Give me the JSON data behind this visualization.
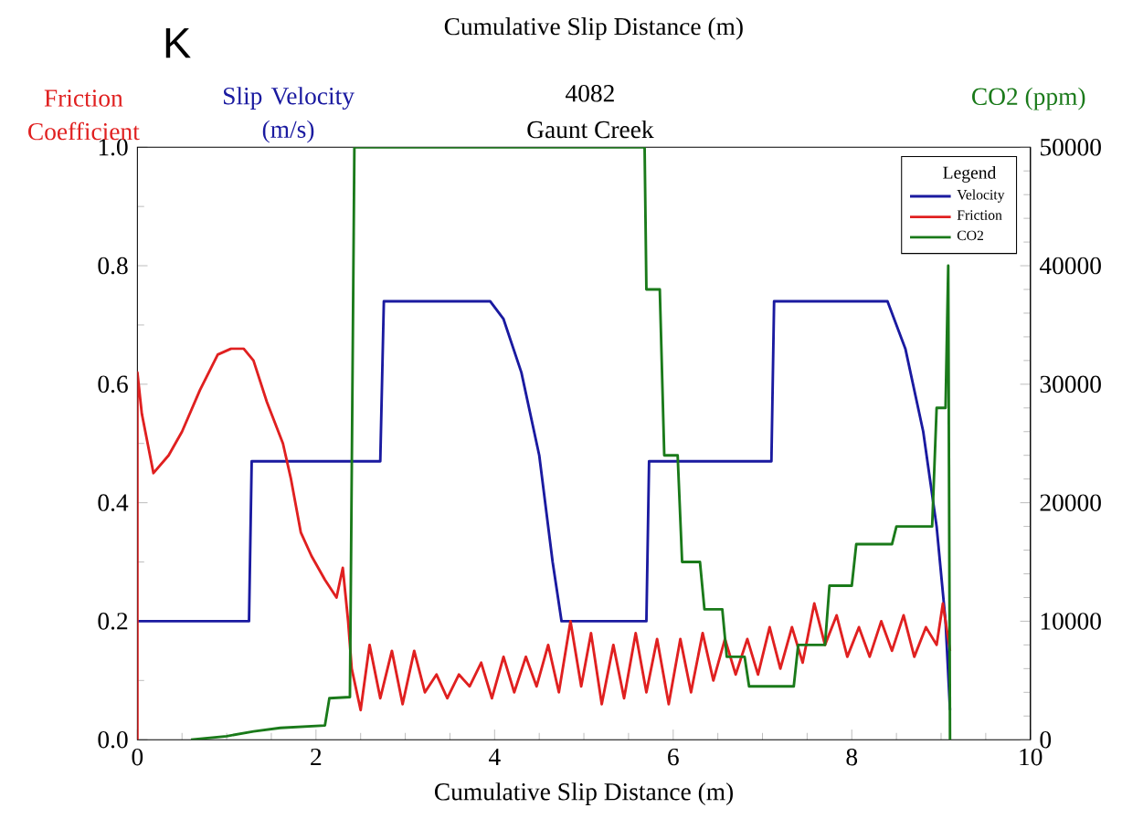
{
  "chart_data": {
    "type": "line",
    "title": "4082",
    "subtitle": "Gaunt Creek",
    "xlabel": "Cumulative Slip Distance (m)",
    "ylabel": "Friction Coefficient",
    "y2label": "CO2 (ppm)",
    "legend_title": "Legend",
    "annotations": [
      "K",
      "Cumulative Slip Distance (m)",
      "Slip Velocity (m/s)"
    ],
    "xlim": [
      0,
      10
    ],
    "xticks": [
      0,
      2,
      4,
      6,
      8,
      10
    ],
    "ylim": [
      0,
      1
    ],
    "yticks": [
      {
        "value": 0,
        "label": "0.0"
      },
      {
        "value": 0.2,
        "label": "0.2"
      },
      {
        "value": 0.4,
        "label": "0.4"
      },
      {
        "value": 0.6,
        "label": "0.6"
      },
      {
        "value": 0.8,
        "label": "0.8"
      },
      {
        "value": 1,
        "label": "1.0"
      }
    ],
    "y2lim": [
      0,
      50000
    ],
    "y2ticks": [
      0,
      10000,
      20000,
      30000,
      40000,
      50000
    ],
    "legend": "top right",
    "series": [
      {
        "name": "Velocity",
        "color": "#1a1aa0",
        "x": [
          0,
          1.25,
          1.28,
          2.72,
          2.76,
          3.95,
          4.1,
          4.3,
          4.5,
          4.65,
          4.75,
          5.7,
          5.73,
          7.1,
          7.13,
          8.4,
          8.6,
          8.8,
          8.95,
          9.05,
          9.1
        ],
        "values": [
          0.2,
          0.2,
          0.47,
          0.47,
          0.74,
          0.74,
          0.71,
          0.62,
          0.48,
          0.3,
          0.2,
          0.2,
          0.47,
          0.47,
          0.74,
          0.74,
          0.66,
          0.52,
          0.36,
          0.2,
          0.05
        ]
      },
      {
        "name": "Friction",
        "color": "#e02020",
        "x": [
          0,
          0,
          0.05,
          0.18,
          0.35,
          0.5,
          0.7,
          0.9,
          1.05,
          1.19,
          1.3,
          1.45,
          1.63,
          1.72,
          1.83,
          1.95,
          2.1,
          2.23,
          2.3,
          2.36,
          2.4,
          2.5,
          2.6,
          2.72,
          2.85,
          2.97,
          3.1,
          3.22,
          3.35,
          3.47,
          3.6,
          3.72,
          3.85,
          3.97,
          4.1,
          4.22,
          4.35,
          4.47,
          4.6,
          4.72,
          4.85,
          4.97,
          5.08,
          5.2,
          5.33,
          5.45,
          5.58,
          5.7,
          5.82,
          5.95,
          6.08,
          6.2,
          6.33,
          6.45,
          6.58,
          6.7,
          6.83,
          6.95,
          7.08,
          7.2,
          7.33,
          7.45,
          7.58,
          7.7,
          7.83,
          7.95,
          8.08,
          8.2,
          8.33,
          8.45,
          8.58,
          8.7,
          8.83,
          8.95,
          9.02,
          9.1
        ],
        "values": [
          0,
          0.62,
          0.55,
          0.45,
          0.48,
          0.52,
          0.59,
          0.65,
          0.66,
          0.66,
          0.64,
          0.57,
          0.5,
          0.44,
          0.35,
          0.31,
          0.27,
          0.24,
          0.29,
          0.2,
          0.12,
          0.05,
          0.16,
          0.07,
          0.15,
          0.06,
          0.15,
          0.08,
          0.11,
          0.07,
          0.11,
          0.09,
          0.13,
          0.07,
          0.14,
          0.08,
          0.14,
          0.09,
          0.16,
          0.08,
          0.2,
          0.09,
          0.18,
          0.06,
          0.16,
          0.07,
          0.18,
          0.08,
          0.17,
          0.06,
          0.17,
          0.08,
          0.18,
          0.1,
          0.17,
          0.11,
          0.17,
          0.11,
          0.19,
          0.12,
          0.19,
          0.13,
          0.23,
          0.16,
          0.21,
          0.14,
          0.19,
          0.14,
          0.2,
          0.15,
          0.21,
          0.14,
          0.19,
          0.16,
          0.23,
          0.15
        ]
      },
      {
        "name": "CO2",
        "color": "#1a7a1a",
        "axis": "y2",
        "x": [
          0.6,
          1.0,
          1.3,
          1.6,
          2.1,
          2.15,
          2.38,
          2.43,
          5.68,
          5.7,
          5.85,
          5.9,
          6.05,
          6.1,
          6.3,
          6.35,
          6.55,
          6.6,
          6.8,
          6.85,
          7.35,
          7.4,
          7.7,
          7.75,
          8.0,
          8.05,
          8.45,
          8.5,
          8.9,
          8.95,
          9.05,
          9.08,
          9.1
        ],
        "values": [
          0,
          300,
          700,
          1000,
          1200,
          3500,
          3600,
          50000,
          50000,
          38000,
          38000,
          24000,
          24000,
          15000,
          15000,
          11000,
          11000,
          7000,
          7000,
          4500,
          4500,
          8000,
          8000,
          13000,
          13000,
          16500,
          16500,
          18000,
          18000,
          28000,
          28000,
          40000,
          0
        ]
      }
    ]
  }
}
